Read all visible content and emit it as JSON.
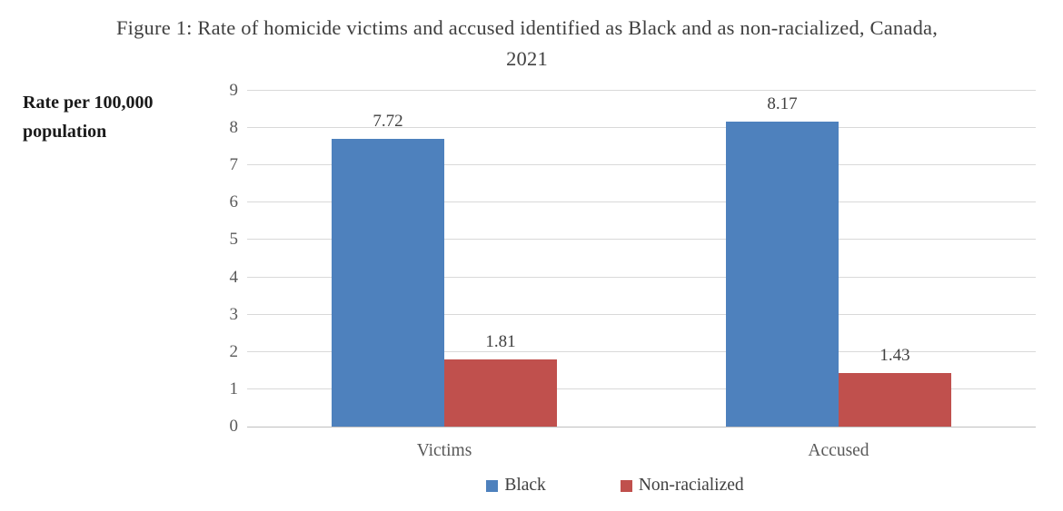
{
  "chart_data": {
    "type": "bar",
    "title": "Figure 1: Rate of homicide victims and accused identified as Black and as non-racialized, Canada, 2021",
    "ylabel": "Rate per 100,000 population",
    "categories": [
      "Victims",
      "Accused"
    ],
    "series": [
      {
        "name": "Black",
        "color": "#4E81BD",
        "values": [
          7.72,
          8.17
        ],
        "data_labels": [
          "7.72",
          "8.17"
        ]
      },
      {
        "name": "Non-racialized",
        "color": "#C0504D",
        "values": [
          1.81,
          1.43
        ],
        "data_labels": [
          "1.81",
          "1.43"
        ]
      }
    ],
    "ylim": [
      0,
      9
    ],
    "ytick_step": 1,
    "ytick_labels": [
      "0",
      "1",
      "2",
      "3",
      "4",
      "5",
      "6",
      "7",
      "8",
      "9"
    ],
    "grid": true,
    "legend_position": "bottom"
  },
  "colors": {
    "bar_black": "#4E81BD",
    "bar_non_racialized": "#C0504D",
    "gridline": "#D9D9D9",
    "axis_line": "#BFBFBF",
    "title_text": "#404040",
    "tick_text": "#595959"
  }
}
